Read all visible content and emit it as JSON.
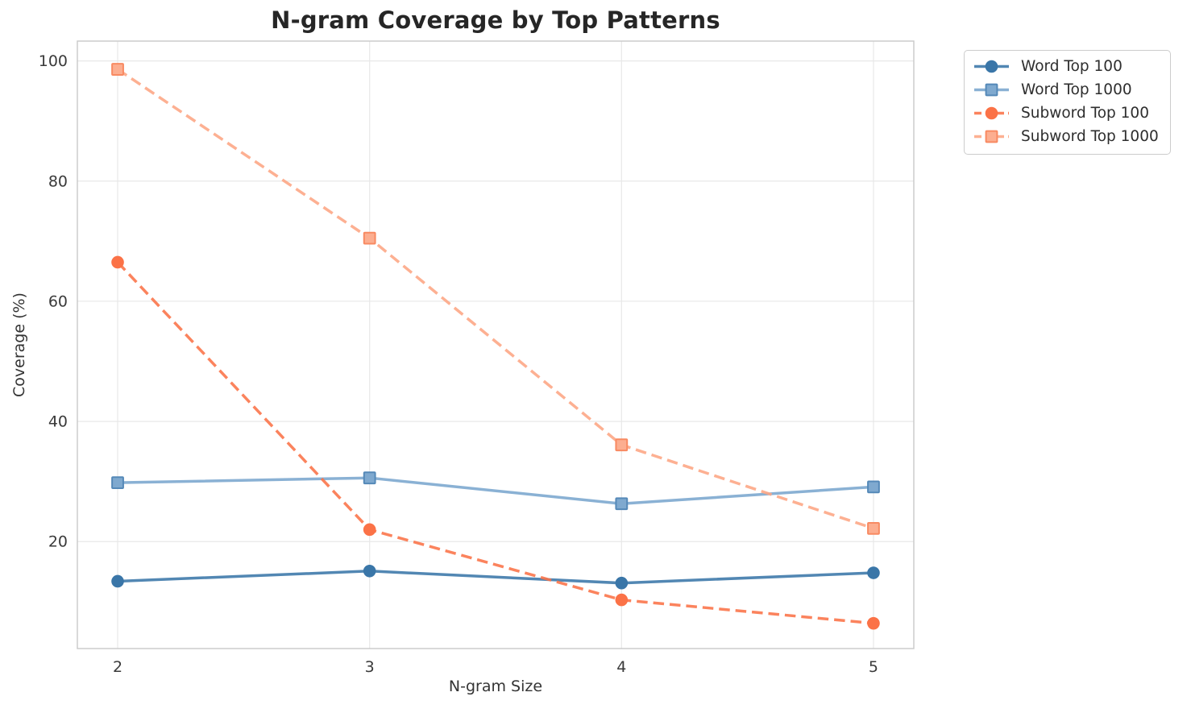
{
  "chart_data": {
    "type": "line",
    "title": "N-gram Coverage by Top Patterns",
    "xlabel": "N-gram Size",
    "ylabel": "Coverage (%)",
    "x": [
      2,
      3,
      4,
      5
    ],
    "xticks": [
      "2",
      "3",
      "4",
      "5"
    ],
    "yticks": [
      20,
      40,
      60,
      80,
      100
    ],
    "xlim": [
      1.84,
      5.16
    ],
    "ylim": [
      2.2,
      103.3
    ],
    "grid": true,
    "legend_position": "outside-upper-right",
    "series": [
      {
        "name": "Word Top 100",
        "values": [
          13.4,
          15.1,
          13.1,
          14.8
        ],
        "color": "#3a76a8",
        "marker": "circle",
        "marker_fill": "#3a76a8",
        "marker_edge": "#3a76a8",
        "line_style": "solid"
      },
      {
        "name": "Word Top 1000",
        "values": [
          29.8,
          30.6,
          26.3,
          29.1
        ],
        "color": "#7aa6ce",
        "marker": "square",
        "marker_fill": "#7fa9cf",
        "marker_edge": "#5589b8",
        "line_style": "solid"
      },
      {
        "name": "Subword Top 100",
        "values": [
          66.5,
          22.0,
          10.3,
          6.4
        ],
        "color": "#fb7247",
        "marker": "circle",
        "marker_fill": "#fb7247",
        "marker_edge": "#fb7247",
        "line_style": "dashed"
      },
      {
        "name": "Subword Top 1000",
        "values": [
          98.6,
          70.5,
          36.1,
          22.2
        ],
        "color": "#fda583",
        "marker": "square",
        "marker_fill": "#fcae90",
        "marker_edge": "#f88a62",
        "line_style": "dashed"
      }
    ],
    "style": {
      "background": "#ffffff",
      "grid_color": "#e8e8e8",
      "spine_color": "#c9c9c9",
      "tick_color": "#3a3a3a",
      "title_color": "#262626"
    }
  }
}
